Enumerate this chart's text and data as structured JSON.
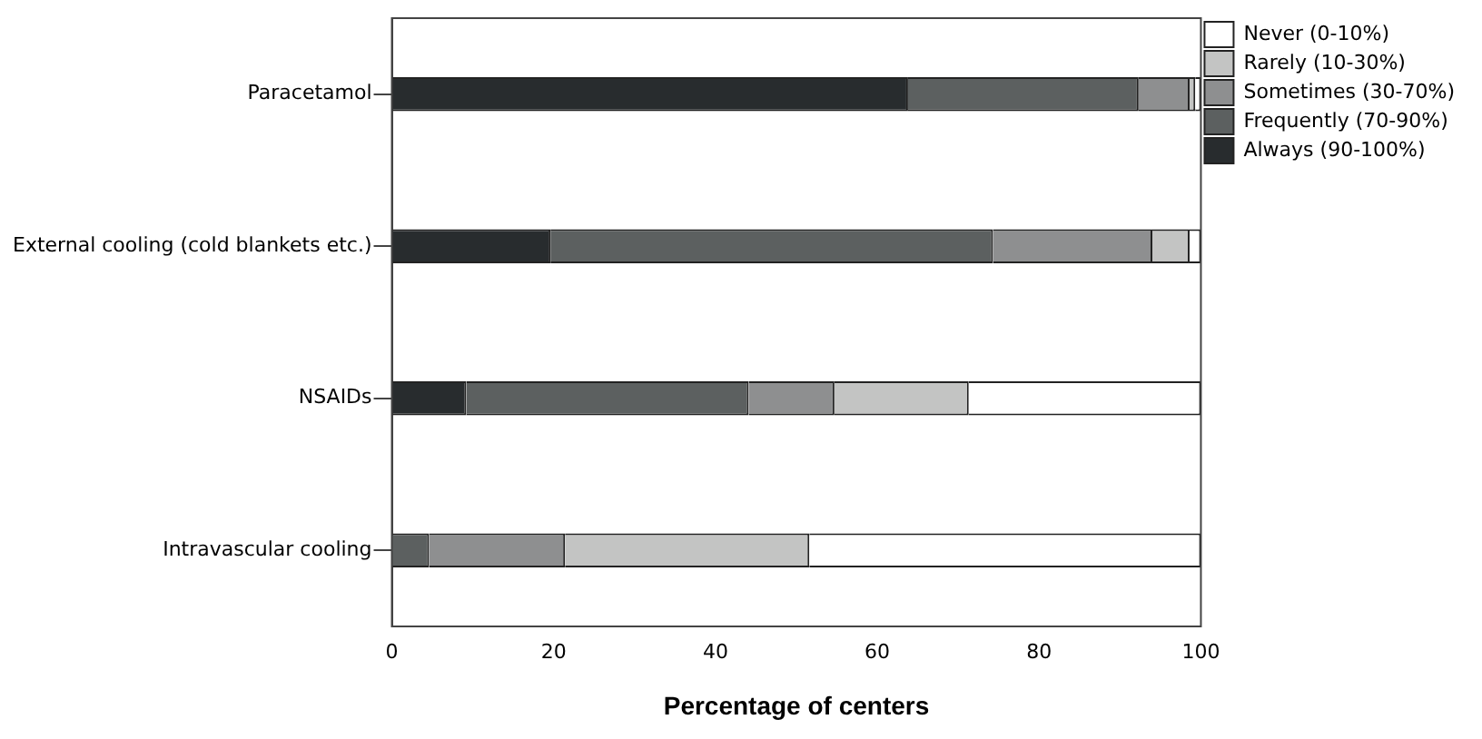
{
  "chart_data": {
    "type": "bar",
    "orientation": "horizontal",
    "stacked": true,
    "xlabel": "Percentage of centers",
    "categories": [
      "Paracetamol",
      "External cooling (cold blankets etc.)",
      "NSAIDs",
      "Intravascular cooling"
    ],
    "series": [
      {
        "name": "Always (90-100%)",
        "color": "#282c2e",
        "values": [
          63.8,
          19.6,
          9.2,
          0
        ]
      },
      {
        "name": "Frequently (70-90%)",
        "color": "#5c6060",
        "values": [
          28.5,
          54.7,
          34.9,
          4.6
        ]
      },
      {
        "name": "Sometimes (30-70%)",
        "color": "#8e8f90",
        "values": [
          6.3,
          19.7,
          10.6,
          16.8
        ]
      },
      {
        "name": "Rarely (10-30%)",
        "color": "#c3c4c3",
        "values": [
          0.7,
          4.6,
          16.6,
          30.2
        ]
      },
      {
        "name": "Never (0-10%)",
        "color": "#ffffff",
        "values": [
          0.7,
          1.4,
          28.7,
          48.4
        ]
      }
    ],
    "xlim": [
      0,
      100
    ],
    "xticks": [
      0,
      20,
      40,
      60,
      80,
      100
    ],
    "grid": false,
    "legend": "top right"
  }
}
